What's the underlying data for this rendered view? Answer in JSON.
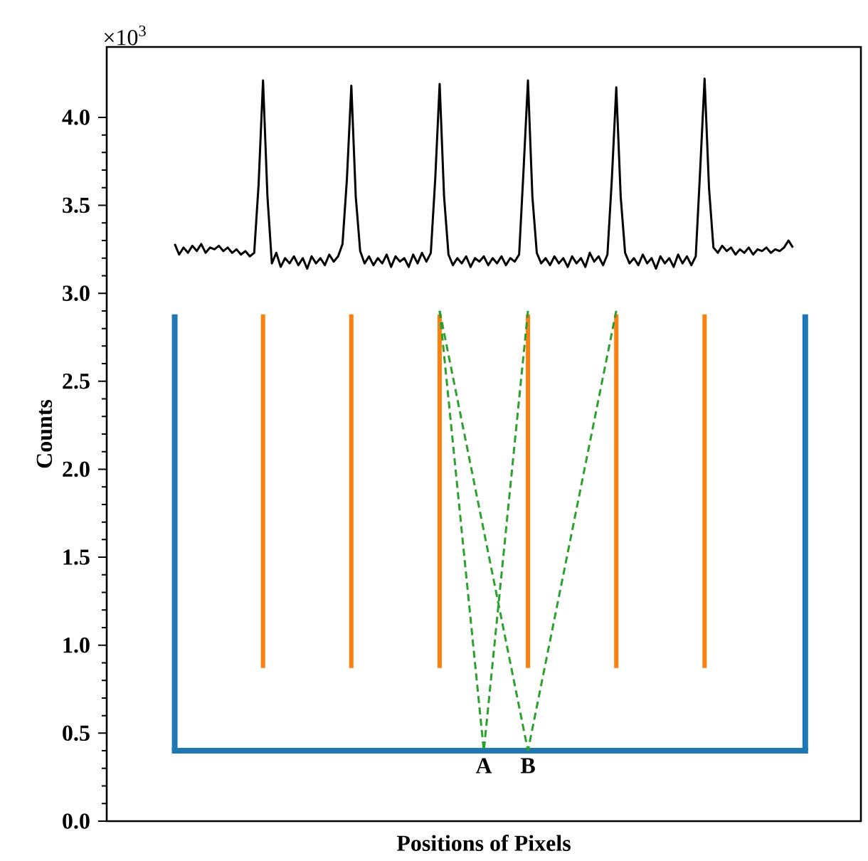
{
  "chart_data": {
    "type": "line",
    "xlabel": "Positions of Pixels",
    "ylabel": "Counts",
    "ylim": [
      0,
      4.4
    ],
    "categories": [
      null,
      null,
      null,
      null,
      null,
      null,
      null,
      null,
      null,
      null,
      null,
      null,
      null,
      null,
      null,
      null,
      null,
      null,
      null,
      null,
      null,
      null,
      null,
      null,
      null,
      null,
      null,
      null,
      null,
      null,
      null,
      null,
      null,
      null,
      null,
      null,
      null,
      null,
      null,
      null,
      null,
      null,
      null,
      null,
      null,
      null,
      null,
      null,
      null,
      null,
      null,
      null,
      null,
      null,
      null,
      null,
      null,
      null,
      null,
      null,
      null,
      null,
      null,
      null,
      null,
      null,
      null,
      null,
      null,
      null,
      null,
      null,
      null,
      null,
      null,
      null,
      null,
      null,
      null,
      null,
      null,
      null,
      null,
      null,
      null,
      null,
      null,
      null,
      null,
      null,
      null,
      null,
      null,
      null,
      null,
      null,
      null,
      null,
      null,
      null,
      null,
      null,
      null,
      null,
      null,
      null,
      null,
      null,
      null,
      null,
      null,
      null,
      null,
      null,
      null,
      null,
      null,
      null,
      null,
      null,
      null,
      null,
      null,
      null,
      null,
      null,
      null,
      null,
      null,
      null,
      null,
      null,
      null,
      null,
      null,
      null,
      null,
      null,
      null,
      null,
      null
    ],
    "yticks": [
      {
        "value": 0,
        "label": "0.0"
      },
      {
        "value": 0.5,
        "label": "0.5"
      },
      {
        "value": 1,
        "label": "1.0"
      },
      {
        "value": 1.5,
        "label": "1.5"
      },
      {
        "value": 2,
        "label": "2.0"
      },
      {
        "value": 2.5,
        "label": "2.5"
      },
      {
        "value": 3,
        "label": "3.0"
      },
      {
        "value": 3.5,
        "label": "3.5"
      },
      {
        "value": 4,
        "label": "4.0"
      }
    ],
    "tick_labels": "y",
    "ref_lines": [
      {
        "axis": "y",
        "value": 0.4,
        "color": "#1f77b4"
      }
    ],
    "annotations": [
      "×10$^{3}$",
      "A",
      "B"
    ],
    "series": [
      {
        "color": "#000000",
        "line_style": "solid",
        "values": [
          3.28,
          3.22,
          3.26,
          3.23,
          3.27,
          3.24,
          3.28,
          3.23,
          3.26,
          3.25,
          3.27,
          3.24,
          3.26,
          3.23,
          3.25,
          3.22,
          3.24,
          3.21,
          3.23,
          3.62,
          4.21,
          3.55,
          3.17,
          3.23,
          3.15,
          3.2,
          3.17,
          3.21,
          3.16,
          3.2,
          3.14,
          3.21,
          3.17,
          3.2,
          3.16,
          3.22,
          3.18,
          3.21,
          3.28,
          3.65,
          4.18,
          3.55,
          3.24,
          3.17,
          3.21,
          3.16,
          3.2,
          3.17,
          3.22,
          3.15,
          3.21,
          3.18,
          3.2,
          3.15,
          3.22,
          3.17,
          3.23,
          3.18,
          3.23,
          3.65,
          4.19,
          3.55,
          3.22,
          3.16,
          3.2,
          3.17,
          3.21,
          3.15,
          3.2,
          3.18,
          3.21,
          3.16,
          3.2,
          3.17,
          3.21,
          3.16,
          3.2,
          3.18,
          3.22,
          3.7,
          4.21,
          3.55,
          3.23,
          3.17,
          3.2,
          3.16,
          3.21,
          3.17,
          3.2,
          3.15,
          3.21,
          3.17,
          3.2,
          3.15,
          3.23,
          3.18,
          3.21,
          3.16,
          3.22,
          3.65,
          4.17,
          3.55,
          3.23,
          3.17,
          3.2,
          3.16,
          3.22,
          3.17,
          3.2,
          3.14,
          3.21,
          3.17,
          3.2,
          3.15,
          3.22,
          3.17,
          3.21,
          3.16,
          3.21,
          3.7,
          4.22,
          3.6,
          3.26,
          3.23,
          3.27,
          3.24,
          3.26,
          3.22,
          3.25,
          3.23,
          3.26,
          3.22,
          3.25,
          3.24,
          3.26,
          3.23,
          3.25,
          3.24,
          3.26,
          3.3,
          3.26
        ]
      }
    ]
  }
}
